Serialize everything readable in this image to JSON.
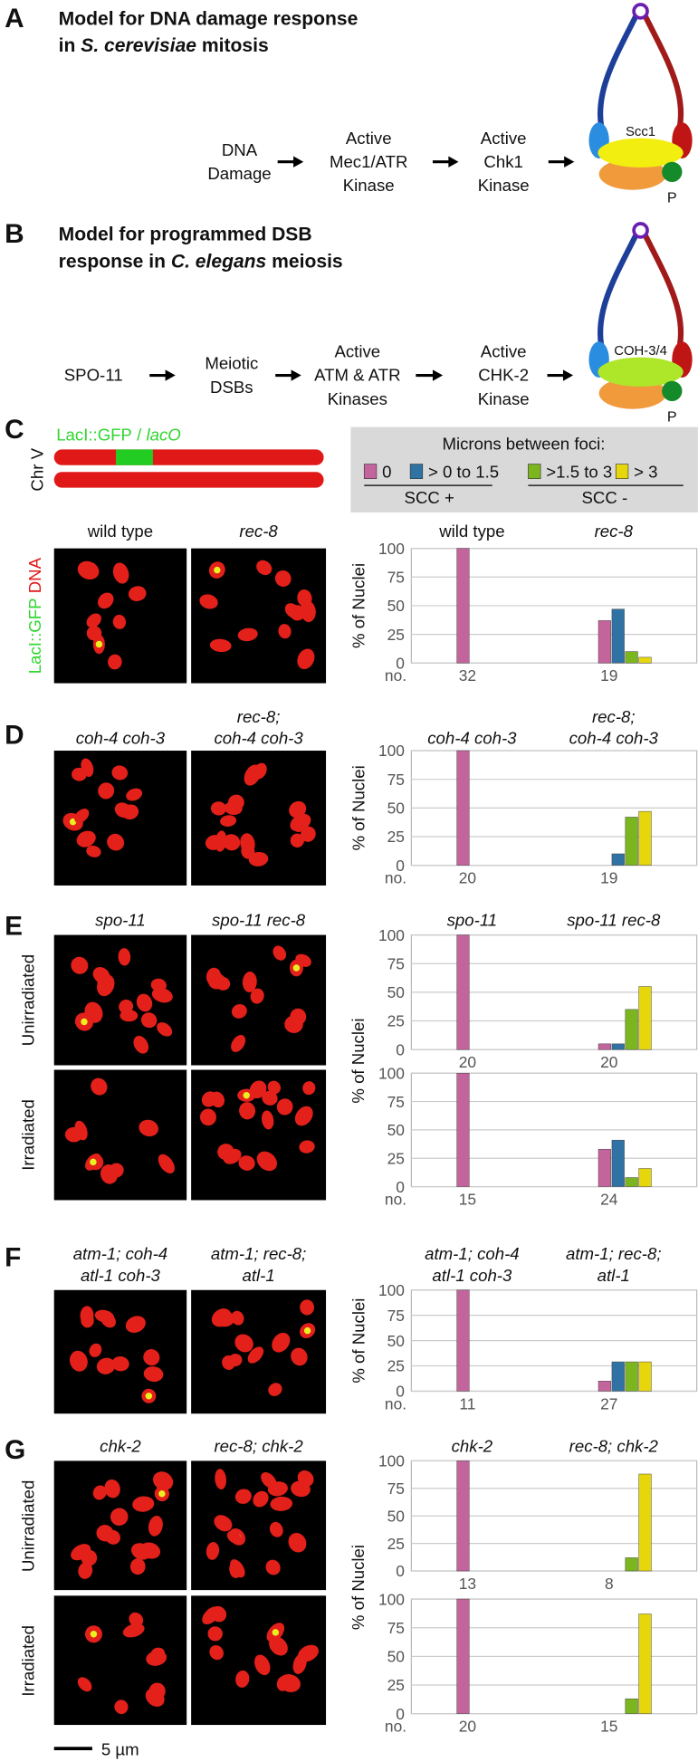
{
  "panel_a": {
    "letter": "A",
    "title_line1": "Model for DNA damage response",
    "title_line2": [
      "in ",
      "S. cerevisiae",
      " mitosis"
    ],
    "steps": [
      [
        "DNA",
        "Damage"
      ],
      [
        "Active",
        "Mec1/ATR",
        "Kinase"
      ],
      [
        "Active",
        "Chk1",
        "Kinase"
      ]
    ],
    "cohesin_label": "Scc1",
    "phospho": "P"
  },
  "panel_b": {
    "letter": "B",
    "title_line1": "Model for programmed DSB",
    "title_line2": [
      "response in ",
      "C. elegans",
      " meiosis"
    ],
    "steps": [
      [
        "SPO-11"
      ],
      [
        "Meiotic",
        "DSBs"
      ],
      [
        "Active",
        "ATM & ATR",
        "Kinases"
      ],
      [
        "Active",
        "CHK-2",
        "Kinase"
      ]
    ],
    "cohesin_label": "COH-3/4",
    "phospho": "P"
  },
  "panel_c": {
    "letter": "C",
    "construct": [
      "LacI::GFP",
      " / ",
      "lacO"
    ],
    "chromosome": "Chr V",
    "image_label": [
      "LacI::GFP",
      " DNA"
    ],
    "legend": {
      "title": "Microns between foci:",
      "series": [
        {
          "name": "0",
          "color": "#c4649c"
        },
        {
          "name": "> 0 to 1.5",
          "color": "#2f72a3"
        },
        {
          "name": ">1.5 to 3",
          "color": "#7cb61e"
        },
        {
          "name": "> 3",
          "color": "#e6d70c"
        }
      ],
      "groups": [
        "SCC +",
        "SCC -"
      ]
    }
  },
  "panel_d": {
    "letter": "D"
  },
  "panel_e": {
    "letter": "E",
    "conditions": [
      "Unirradiated",
      "Irradiated"
    ]
  },
  "panel_f": {
    "letter": "F"
  },
  "panel_g": {
    "letter": "G",
    "conditions": [
      "Unirradiated",
      "Irradiated"
    ]
  },
  "scale_bar": "5 µm",
  "chart_data": [
    {
      "type": "bar",
      "categories": [
        [
          "wild type"
        ],
        [
          "rec-8"
        ]
      ],
      "y_label": "% of Nuclei",
      "ylim": [
        0,
        100
      ],
      "yticks": [
        0,
        25,
        50,
        75,
        100
      ],
      "grid": true,
      "series": [
        {
          "values": [
            100,
            37
          ]
        },
        {
          "values": [
            0,
            47
          ]
        },
        {
          "values": [
            0,
            10
          ]
        },
        {
          "values": [
            0,
            5
          ]
        }
      ],
      "count_label": "no.",
      "counts": [
        32,
        19
      ]
    },
    {
      "type": "bar",
      "categories": [
        [
          "coh-4 coh-3"
        ],
        [
          "rec-8;",
          "coh-4 coh-3"
        ]
      ],
      "y_label": "% of Nuclei",
      "ylim": [
        0,
        100
      ],
      "yticks": [
        0,
        25,
        50,
        75,
        100
      ],
      "grid": true,
      "series": [
        {
          "values": [
            100,
            0
          ]
        },
        {
          "values": [
            0,
            10
          ]
        },
        {
          "values": [
            0,
            42
          ]
        },
        {
          "values": [
            0,
            47
          ]
        }
      ],
      "count_label": "no.",
      "counts": [
        20,
        19
      ]
    },
    {
      "type": "bar",
      "categories": [
        [
          "spo-11"
        ],
        [
          "spo-11 rec-8"
        ]
      ],
      "y_label": "% of Nuclei",
      "ylim": [
        0,
        100
      ],
      "yticks": [
        0,
        25,
        50,
        75,
        100
      ],
      "grid": true,
      "series": [
        {
          "values": [
            100,
            5
          ]
        },
        {
          "values": [
            0,
            5
          ]
        },
        {
          "values": [
            0,
            35
          ]
        },
        {
          "values": [
            0,
            55
          ]
        }
      ],
      "counts": [
        20,
        20
      ]
    },
    {
      "type": "bar",
      "ylim": [
        0,
        100
      ],
      "yticks": [
        0,
        25,
        50,
        75,
        100
      ],
      "grid": true,
      "series": [
        {
          "values": [
            100,
            33
          ]
        },
        {
          "values": [
            0,
            41
          ]
        },
        {
          "values": [
            0,
            8
          ]
        },
        {
          "values": [
            0,
            16
          ]
        }
      ],
      "count_label": "no.",
      "counts": [
        15,
        24
      ]
    },
    {
      "type": "bar",
      "categories": [
        [
          "atm-1; coh-4",
          "atl-1 coh-3"
        ],
        [
          "atm-1; rec-8;",
          "atl-1"
        ]
      ],
      "y_label": "% of Nuclei",
      "ylim": [
        0,
        100
      ],
      "yticks": [
        0,
        25,
        50,
        75,
        100
      ],
      "grid": true,
      "series": [
        {
          "values": [
            100,
            10
          ]
        },
        {
          "values": [
            0,
            29
          ]
        },
        {
          "values": [
            0,
            29
          ]
        },
        {
          "values": [
            0,
            29
          ]
        }
      ],
      "count_label": "no.",
      "counts": [
        11,
        27
      ]
    },
    {
      "type": "bar",
      "categories": [
        [
          "chk-2"
        ],
        [
          "rec-8; chk-2"
        ]
      ],
      "y_label": "% of Nuclei",
      "ylim": [
        0,
        100
      ],
      "yticks": [
        0,
        25,
        50,
        75,
        100
      ],
      "grid": true,
      "series": [
        {
          "values": [
            100,
            0
          ]
        },
        {
          "values": [
            0,
            0
          ]
        },
        {
          "values": [
            0,
            12
          ]
        },
        {
          "values": [
            0,
            88
          ]
        }
      ],
      "counts": [
        13,
        8
      ]
    },
    {
      "type": "bar",
      "ylim": [
        0,
        100
      ],
      "yticks": [
        0,
        25,
        50,
        75,
        100
      ],
      "grid": true,
      "series": [
        {
          "values": [
            100,
            0
          ]
        },
        {
          "values": [
            0,
            0
          ]
        },
        {
          "values": [
            0,
            13
          ]
        },
        {
          "values": [
            0,
            87
          ]
        }
      ],
      "count_label": "no.",
      "counts": [
        20,
        15
      ]
    }
  ]
}
